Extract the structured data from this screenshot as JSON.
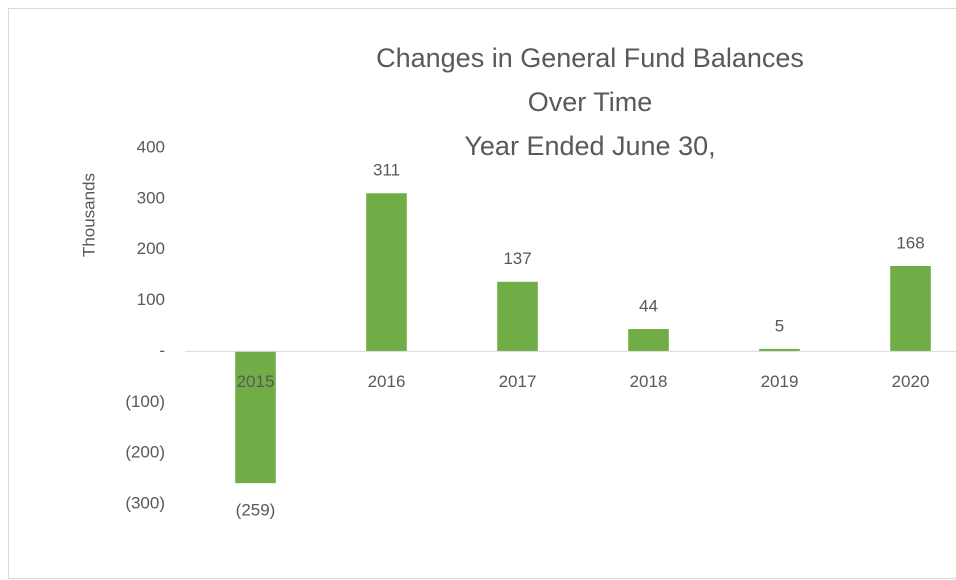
{
  "chart_data": {
    "type": "bar",
    "title": [
      "Changes in General Fund Balances",
      "Over Time",
      "Year Ended June 30,"
    ],
    "y_axis_label": "Thousands",
    "categories": [
      "2015",
      "2016",
      "2017",
      "2018",
      "2019",
      "2020"
    ],
    "values": [
      -259,
      311,
      137,
      44,
      5,
      168
    ],
    "value_labels": [
      "(259)",
      "311",
      "137",
      "44",
      "5",
      "168"
    ],
    "color": "#70ad47",
    "ylim": [
      -300,
      400
    ],
    "yticks": [
      400,
      300,
      200,
      100,
      {
        "value": 0,
        "label": "-"
      },
      {
        "value": -100,
        "label": "(100)"
      },
      {
        "value": -200,
        "label": "(200)"
      },
      {
        "value": -300,
        "label": "(300)"
      }
    ],
    "grid": false
  }
}
